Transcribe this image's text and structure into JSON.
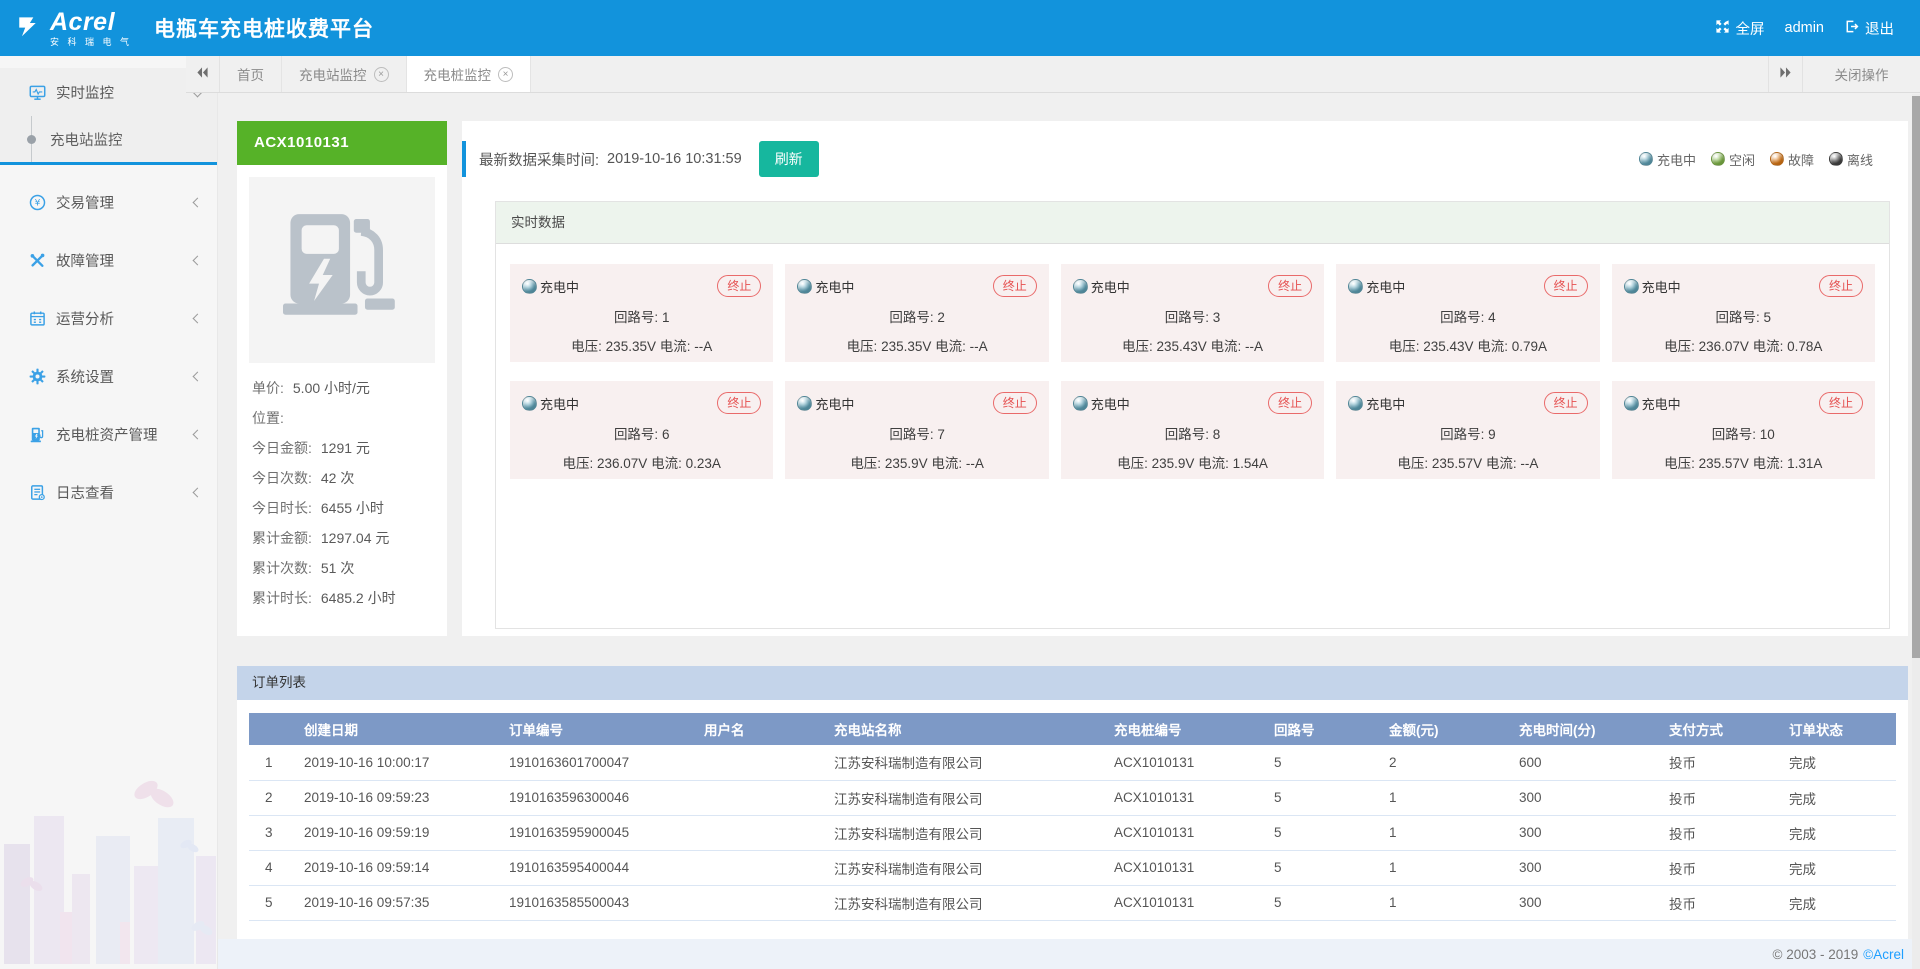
{
  "header": {
    "logo_text": "Acrel",
    "logo_subtext": "安 科 瑞 电 气",
    "title": "电瓶车充电桩收费平台",
    "fullscreen_label": "全屏",
    "username": "admin",
    "logout_label": "退出"
  },
  "tabbar": {
    "tabs": [
      {
        "label": "首页",
        "closable": false,
        "active": false
      },
      {
        "label": "充电站监控",
        "closable": true,
        "active": false
      },
      {
        "label": "充电桩监控",
        "closable": true,
        "active": true
      }
    ],
    "close_glyph": "×",
    "close_ops_label": "关闭操作"
  },
  "sidebar": {
    "groups": [
      {
        "label": "实时监控",
        "icon": "realtime-monitor-icon",
        "expanded": true,
        "children": [
          {
            "label": "充电站监控",
            "active": true
          }
        ]
      },
      {
        "label": "交易管理",
        "icon": "transaction-icon",
        "expanded": false,
        "children": []
      },
      {
        "label": "故障管理",
        "icon": "fault-icon",
        "expanded": false,
        "children": []
      },
      {
        "label": "运营分析",
        "icon": "analysis-calendar-icon",
        "expanded": false,
        "children": []
      },
      {
        "label": "系统设置",
        "icon": "settings-gear-icon",
        "expanded": false,
        "children": []
      },
      {
        "label": "充电桩资产管理",
        "icon": "pile-asset-icon",
        "expanded": false,
        "children": []
      },
      {
        "label": "日志查看",
        "icon": "log-icon",
        "expanded": false,
        "children": []
      }
    ]
  },
  "device_panel": {
    "title": "ACX1010131",
    "stats": [
      {
        "label": "单价:",
        "value": "5.00 小时/元"
      },
      {
        "label": "位置:",
        "value": ""
      },
      {
        "label": "今日金额:",
        "value": "1291 元"
      },
      {
        "label": "今日次数:",
        "value": "42 次"
      },
      {
        "label": "今日时长:",
        "value": "6455 小时"
      },
      {
        "label": "累计金额:",
        "value": "1297.04 元"
      },
      {
        "label": "累计次数:",
        "value": "51 次"
      },
      {
        "label": "累计时长:",
        "value": "6485.2 小时"
      }
    ]
  },
  "toolbar": {
    "collect_time_label": "最新数据采集时间:",
    "collect_time": "2019-10-16 10:31:59",
    "refresh_label": "刷新",
    "accent_color": "#1293dc",
    "refresh_color": "#16b79e",
    "legend": [
      {
        "label": "充电中",
        "color": "#6ab2c9"
      },
      {
        "label": "空闲",
        "color": "#8dc750"
      },
      {
        "label": "故障",
        "color": "#f08418"
      },
      {
        "label": "离线",
        "color": "#4c4c4c"
      }
    ]
  },
  "realtime": {
    "section_title": "实时数据",
    "status_label": "充电中",
    "status_color": "#6ab2c9",
    "terminate_label": "终止",
    "circuit_label": "回路号:",
    "voltage_label": "电压:",
    "current_label": "电流:",
    "circuits": [
      {
        "no": "1",
        "voltage": "235.35V",
        "current": "--A"
      },
      {
        "no": "2",
        "voltage": "235.35V",
        "current": "--A"
      },
      {
        "no": "3",
        "voltage": "235.43V",
        "current": "--A"
      },
      {
        "no": "4",
        "voltage": "235.43V",
        "current": "0.79A"
      },
      {
        "no": "5",
        "voltage": "236.07V",
        "current": "0.78A"
      },
      {
        "no": "6",
        "voltage": "236.07V",
        "current": "0.23A"
      },
      {
        "no": "7",
        "voltage": "235.9V",
        "current": "--A"
      },
      {
        "no": "8",
        "voltage": "235.9V",
        "current": "1.54A"
      },
      {
        "no": "9",
        "voltage": "235.57V",
        "current": "--A"
      },
      {
        "no": "10",
        "voltage": "235.57V",
        "current": "1.31A"
      }
    ]
  },
  "orders": {
    "section_title": "订单列表",
    "columns": [
      "创建日期",
      "订单编号",
      "用户名",
      "充电站名称",
      "充电桩编号",
      "回路号",
      "金额(元)",
      "充电时间(分)",
      "支付方式",
      "订单状态"
    ],
    "rows": [
      [
        "1",
        "2019-10-16 10:00:17",
        "1910163601700047",
        "",
        "江苏安科瑞制造有限公司",
        "ACX1010131",
        "5",
        "2",
        "600",
        "投币",
        "完成"
      ],
      [
        "2",
        "2019-10-16 09:59:23",
        "1910163596300046",
        "",
        "江苏安科瑞制造有限公司",
        "ACX1010131",
        "5",
        "1",
        "300",
        "投币",
        "完成"
      ],
      [
        "3",
        "2019-10-16 09:59:19",
        "1910163595900045",
        "",
        "江苏安科瑞制造有限公司",
        "ACX1010131",
        "5",
        "1",
        "300",
        "投币",
        "完成"
      ],
      [
        "4",
        "2019-10-16 09:59:14",
        "1910163595400044",
        "",
        "江苏安科瑞制造有限公司",
        "ACX1010131",
        "5",
        "1",
        "300",
        "投币",
        "完成"
      ],
      [
        "5",
        "2019-10-16 09:57:35",
        "1910163585500043",
        "",
        "江苏安科瑞制造有限公司",
        "ACX1010131",
        "5",
        "1",
        "300",
        "投币",
        "完成"
      ]
    ]
  },
  "footer": {
    "copyright": "© 2003 - 2019",
    "brand": "©Acrel"
  }
}
